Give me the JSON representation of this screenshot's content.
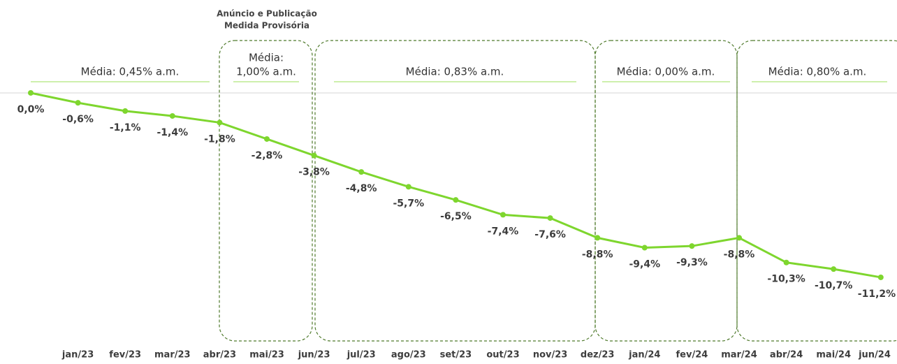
{
  "chart_data": {
    "type": "line",
    "categories": [
      null,
      "jan/23",
      "fev/23",
      "mar/23",
      "abr/23",
      "mai/23",
      "jun/23",
      "jul/23",
      "ago/23",
      "set/23",
      "out/23",
      "nov/23",
      "dez/23",
      "jan/24",
      "fev/24",
      "mar/24",
      "abr/24",
      "mai/24",
      "jun/24"
    ],
    "values": [
      0.0,
      -0.6,
      -1.1,
      -1.4,
      -1.8,
      -2.8,
      -3.8,
      -4.8,
      -5.7,
      -6.5,
      -7.4,
      -7.6,
      -8.8,
      -9.4,
      -9.3,
      -8.8,
      -10.3,
      -10.7,
      -11.2
    ],
    "value_labels": [
      "0,0%",
      "-0,6%",
      "-1,1%",
      "-1,4%",
      "-1,8%",
      "-2,8%",
      "-3,8%",
      "-4,8%",
      "-5,7%",
      "-6,5%",
      "-7,4%",
      "-7,6%",
      "-8,8%",
      "-9,4%",
      "-9,3%",
      "-8,8%",
      "-10,3%",
      "-10,7%",
      "-11,2%"
    ],
    "color": "#7ed62e",
    "ylim": [
      -12,
      0.5
    ],
    "highlight_title": [
      "Anúncio e Publicação",
      "Medida Provisória"
    ],
    "periods": [
      {
        "lines": [
          "Média: 0,45% a.m."
        ]
      },
      {
        "lines": [
          "Média:",
          "1,00% a.m."
        ]
      },
      {
        "lines": [
          "Média: 0,83% a.m."
        ]
      },
      {
        "lines": [
          "Média: 0,00% a.m."
        ]
      },
      {
        "lines": [
          "Média: 0,80% a.m."
        ]
      }
    ]
  }
}
